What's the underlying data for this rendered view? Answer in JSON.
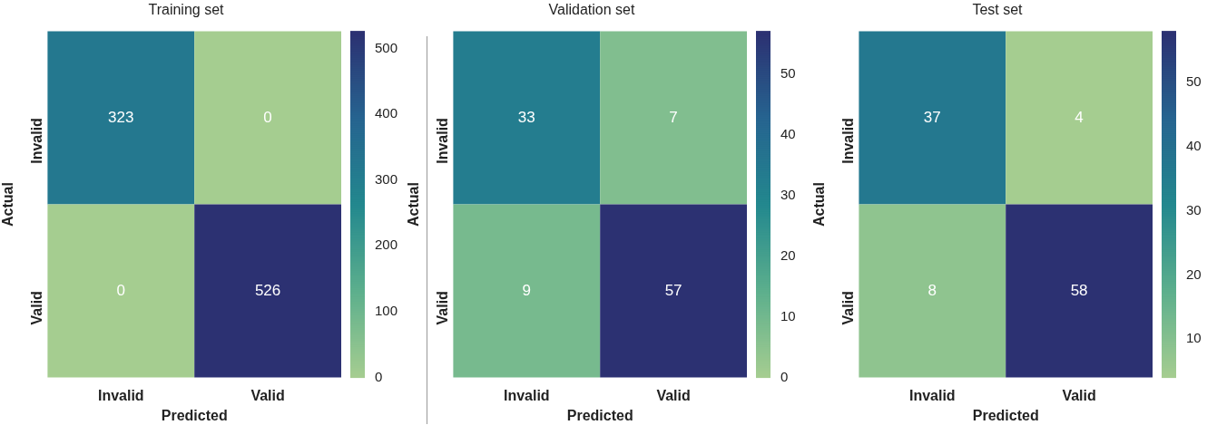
{
  "chart_data": [
    {
      "type": "heatmap",
      "title": "Training set",
      "xlabel": "Predicted",
      "ylabel": "Actual",
      "categories": [
        "Invalid",
        "Valid"
      ],
      "y_categories": [
        "Invalid",
        "Valid"
      ],
      "cells": [
        [
          323,
          0
        ],
        [
          0,
          526
        ]
      ],
      "clim": [
        0,
        526
      ],
      "cticks": [
        0,
        100,
        200,
        300,
        400,
        500
      ],
      "data_labels": true
    },
    {
      "type": "heatmap",
      "title": "Validation set",
      "xlabel": "Predicted",
      "ylabel": "Actual",
      "categories": [
        "Invalid",
        "Valid"
      ],
      "y_categories": [
        "Invalid",
        "Valid"
      ],
      "cells": [
        [
          33,
          7
        ],
        [
          9,
          57
        ]
      ],
      "clim": [
        0,
        57
      ],
      "cticks": [
        0,
        10,
        20,
        30,
        40,
        50
      ],
      "data_labels": true
    },
    {
      "type": "heatmap",
      "title": "Test set",
      "xlabel": "Predicted",
      "ylabel": "Actual",
      "categories": [
        "Invalid",
        "Valid"
      ],
      "y_categories": [
        "Invalid",
        "Valid"
      ],
      "cells": [
        [
          37,
          4
        ],
        [
          8,
          58
        ]
      ],
      "clim": [
        4,
        58
      ],
      "cticks": [
        10,
        20,
        30,
        40,
        50
      ],
      "data_labels": true
    }
  ]
}
